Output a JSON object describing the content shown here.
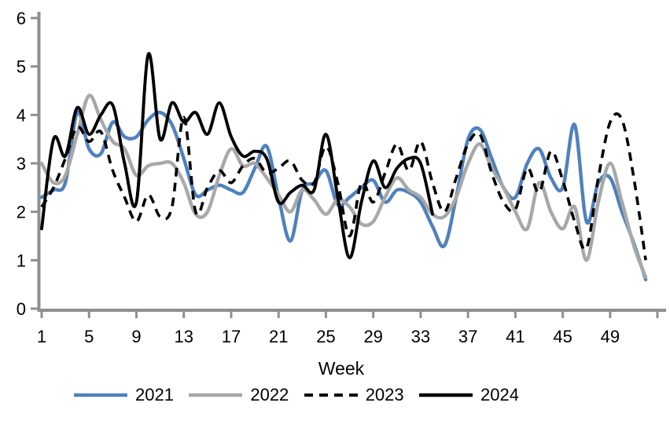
{
  "chart_data": {
    "type": "line",
    "title": "",
    "xlabel": "Week",
    "ylabel": "",
    "xlim": [
      1,
      52
    ],
    "ylim": [
      0,
      6
    ],
    "grid": false,
    "legend_position": "bottom",
    "x_tick_labels": [
      1,
      5,
      9,
      13,
      17,
      21,
      25,
      29,
      33,
      37,
      41,
      45,
      49
    ],
    "y_tick_labels": [
      0,
      1,
      2,
      3,
      4,
      5,
      6
    ],
    "axis_color": "#8F8F8F",
    "x": "weeks 1-52",
    "series": [
      {
        "name": "2021",
        "color": "#4F81BD",
        "style": "solid",
        "start_week": 1,
        "values": [
          2.3,
          2.45,
          2.6,
          4.05,
          3.3,
          3.2,
          3.85,
          3.55,
          3.55,
          3.9,
          4.05,
          3.8,
          3.1,
          2.35,
          2.45,
          2.55,
          2.45,
          2.4,
          2.9,
          3.35,
          2.3,
          1.4,
          2.45,
          2.6,
          2.85,
          2.15,
          2.3,
          2.5,
          2.65,
          2.2,
          2.45,
          2.4,
          2.2,
          1.7,
          1.3,
          2.3,
          3.5,
          3.7,
          3.1,
          2.5,
          2.3,
          3.0,
          3.3,
          2.7,
          2.5,
          3.8,
          1.8,
          2.6,
          2.7,
          2.0,
          1.35,
          0.6
        ]
      },
      {
        "name": "2022",
        "color": "#A8A8A8",
        "style": "solid",
        "start_week": 1,
        "values": [
          3.0,
          2.6,
          2.75,
          3.6,
          4.4,
          3.9,
          3.45,
          3.3,
          2.75,
          2.95,
          3.0,
          3.0,
          2.6,
          1.95,
          2.0,
          2.75,
          3.3,
          2.95,
          3.0,
          2.7,
          2.35,
          2.0,
          2.45,
          2.25,
          1.95,
          2.25,
          2.1,
          1.75,
          1.8,
          2.3,
          2.7,
          2.45,
          2.3,
          1.95,
          1.9,
          2.3,
          3.0,
          3.4,
          2.9,
          2.5,
          2.0,
          1.65,
          2.6,
          2.0,
          1.65,
          2.1,
          1.0,
          2.2,
          3.0,
          2.2,
          1.3,
          0.65
        ]
      },
      {
        "name": "2023",
        "color": "#000000",
        "style": "dashed",
        "start_week": 1,
        "values": [
          2.1,
          2.5,
          3.1,
          3.75,
          3.45,
          3.65,
          2.85,
          2.3,
          1.8,
          2.35,
          1.9,
          2.1,
          3.95,
          2.0,
          2.5,
          2.85,
          2.6,
          2.95,
          3.1,
          2.8,
          2.9,
          3.05,
          2.65,
          2.6,
          3.35,
          2.6,
          1.5,
          2.6,
          2.2,
          2.8,
          3.4,
          2.85,
          3.45,
          2.6,
          2.0,
          2.7,
          3.4,
          3.6,
          2.8,
          2.2,
          2.05,
          2.9,
          2.4,
          3.25,
          2.65,
          1.8,
          1.25,
          2.7,
          3.85,
          3.9,
          2.7,
          1.0
        ]
      },
      {
        "name": "2024",
        "color": "#000000",
        "style": "solid",
        "start_week": 1,
        "values": [
          1.65,
          3.5,
          3.15,
          4.15,
          3.6,
          4.0,
          4.2,
          3.0,
          2.2,
          5.25,
          3.5,
          4.25,
          3.85,
          4.05,
          3.6,
          4.25,
          3.55,
          3.15,
          3.25,
          3.1,
          2.2,
          2.4,
          2.55,
          2.45,
          3.6,
          2.3,
          1.05,
          2.2,
          3.05,
          2.5,
          2.9,
          3.1,
          3.0,
          1.95
        ]
      }
    ]
  }
}
